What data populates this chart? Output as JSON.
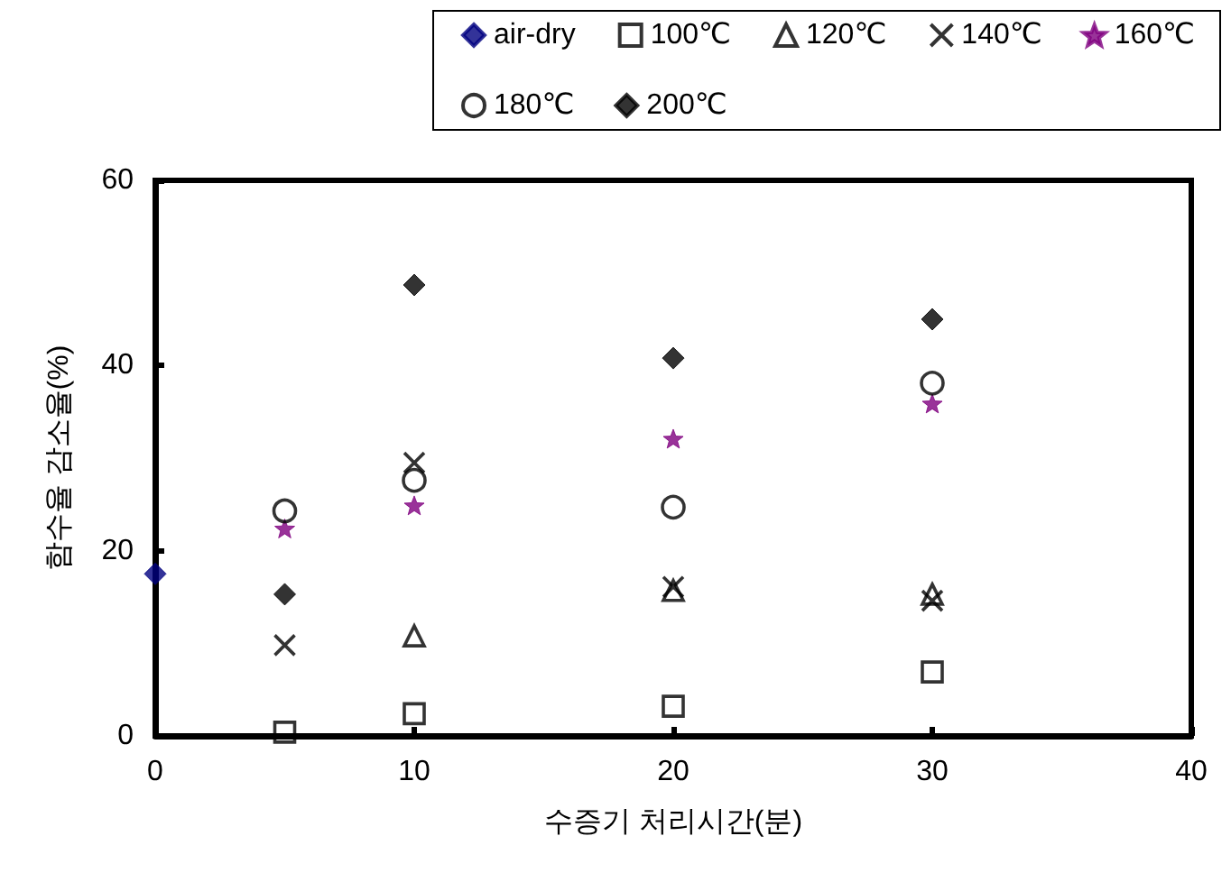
{
  "chart_data": {
    "type": "scatter",
    "xlabel": "수증기 처리시간(분)",
    "ylabel": "함수율 감소율(%)",
    "xlim": [
      0,
      40
    ],
    "xticks": [
      0,
      10,
      20,
      30,
      40
    ],
    "ylim": [
      0,
      60
    ],
    "yticks": [
      0,
      20,
      40,
      60
    ],
    "grid": false,
    "legend": "top right",
    "series": [
      {
        "name": "air-dry",
        "color": "#000080",
        "marker": "diamond",
        "x": [
          0
        ],
        "values": [
          17.5
        ]
      },
      {
        "name": "100℃",
        "color": "#000000",
        "marker": "square",
        "x": [
          5,
          10,
          20,
          30
        ],
        "values": [
          0.4,
          2.4,
          3.2,
          6.9
        ]
      },
      {
        "name": "120℃",
        "color": "#000000",
        "marker": "triangle",
        "x": [
          10,
          20,
          30
        ],
        "values": [
          10.8,
          15.7,
          15.3
        ]
      },
      {
        "name": "140℃",
        "color": "#000000",
        "marker": "cross",
        "x": [
          5,
          10,
          20,
          30
        ],
        "values": [
          9.8,
          29.5,
          16.1,
          14.6
        ]
      },
      {
        "name": "160℃",
        "color": "#800080",
        "marker": "star",
        "x": [
          5,
          10,
          20,
          30
        ],
        "values": [
          22.4,
          24.9,
          32.1,
          35.9
        ]
      },
      {
        "name": "180℃",
        "color": "#000000",
        "marker": "circle",
        "x": [
          5,
          10,
          20,
          30
        ],
        "values": [
          24.3,
          27.6,
          24.7,
          38.1
        ]
      },
      {
        "name": "200℃",
        "color": "#000000",
        "marker": "diamond",
        "x": [
          5,
          10,
          20,
          30
        ],
        "values": [
          15.3,
          48.7,
          40.8,
          45
        ]
      }
    ]
  }
}
